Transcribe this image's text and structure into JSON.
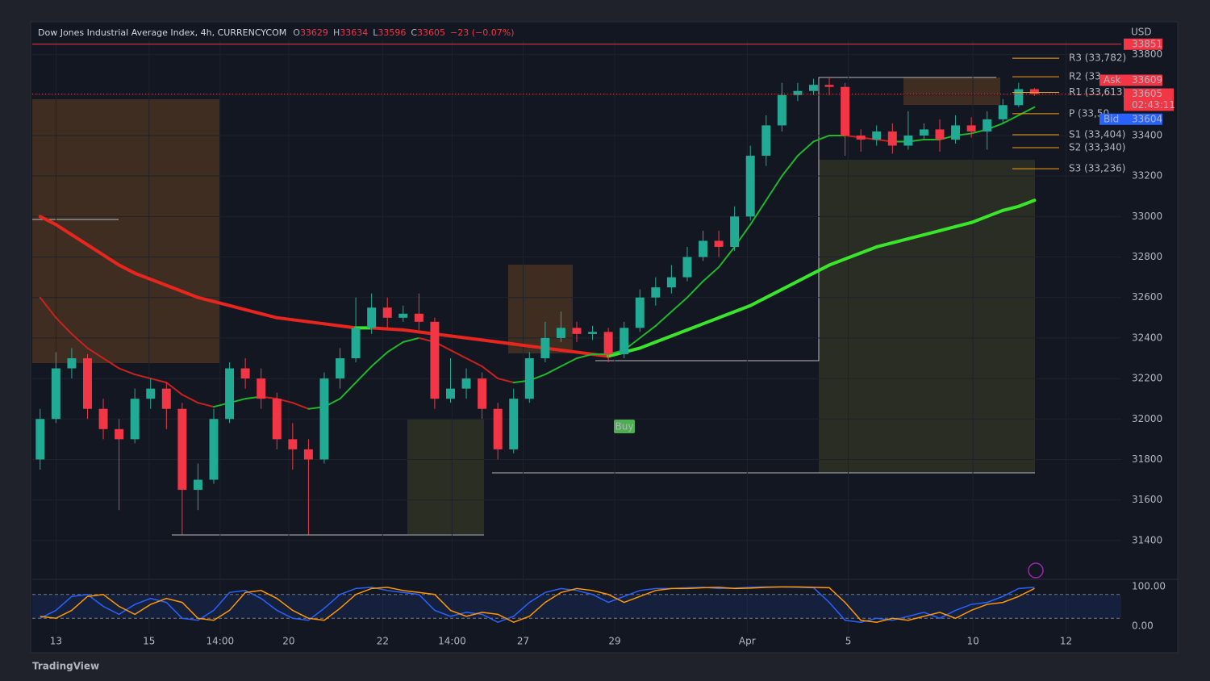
{
  "chart_data": {
    "type": "candlestick",
    "title": "Dow Jones Industrial Average Index, 4h, CURRENCYCOM",
    "ohlc_legend": [
      {
        "label": "O",
        "value": 33629
      },
      {
        "label": "H",
        "value": 33634
      },
      {
        "label": "L",
        "value": 33596
      },
      {
        "label": "C",
        "value": 33605
      }
    ],
    "change_label": "−23 (−0.07%)",
    "currency": "USD",
    "up_color": "#22ab94",
    "down_color": "#f23645",
    "open": [
      31800,
      32000,
      32250,
      32300,
      32050,
      31950,
      31900,
      32100,
      32150,
      32050,
      31650,
      31700,
      32000,
      32250,
      32200,
      32100,
      31900,
      31850,
      31800,
      32200,
      32300,
      32450,
      32550,
      32500,
      32520,
      32480,
      32100,
      32150,
      32200,
      32050,
      31850,
      32100,
      32300,
      32400,
      32450,
      32420,
      32430,
      32320,
      32450,
      32600,
      32650,
      32700,
      32800,
      32880,
      32850,
      33000,
      33300,
      33450,
      33600,
      33620,
      33650,
      33640,
      33400,
      33380,
      33420,
      33350,
      33400,
      33430,
      33380,
      33450,
      33420,
      33480,
      33550,
      33629
    ],
    "high": [
      32050,
      32330,
      32350,
      32320,
      32100,
      32000,
      32150,
      32200,
      32180,
      32080,
      31780,
      32050,
      32280,
      32300,
      32250,
      32130,
      31980,
      31900,
      32230,
      32350,
      32600,
      32620,
      32600,
      32560,
      32620,
      32500,
      32300,
      32250,
      32230,
      32080,
      32150,
      32330,
      32480,
      32530,
      32480,
      32460,
      32450,
      32480,
      32640,
      32700,
      32760,
      32850,
      32930,
      32930,
      33050,
      33350,
      33500,
      33660,
      33660,
      33680,
      33690,
      33660,
      33430,
      33450,
      33460,
      33520,
      33460,
      33480,
      33500,
      33490,
      33520,
      33580,
      33660,
      33634
    ],
    "low": [
      31750,
      31980,
      32200,
      32000,
      31900,
      31550,
      31880,
      32050,
      31950,
      31430,
      31550,
      31680,
      31980,
      32150,
      32050,
      31850,
      31750,
      31430,
      31780,
      32150,
      32280,
      32420,
      32450,
      32480,
      32440,
      32050,
      32080,
      32100,
      32000,
      31800,
      31830,
      32080,
      32280,
      32380,
      32380,
      32390,
      32280,
      32300,
      32430,
      32560,
      32620,
      32680,
      32780,
      32800,
      32830,
      32980,
      33250,
      33420,
      33570,
      33600,
      33600,
      33300,
      33320,
      33350,
      33310,
      33330,
      33380,
      33320,
      33360,
      33390,
      33330,
      33460,
      33540,
      33596
    ],
    "close": [
      32000,
      32250,
      32300,
      32050,
      31950,
      31900,
      32100,
      32150,
      32050,
      31650,
      31700,
      32000,
      32250,
      32200,
      32100,
      31900,
      31850,
      31800,
      32200,
      32300,
      32450,
      32550,
      32500,
      32520,
      32480,
      32100,
      32150,
      32200,
      32050,
      31850,
      32100,
      32300,
      32400,
      32450,
      32420,
      32430,
      32320,
      32450,
      32600,
      32650,
      32700,
      32800,
      32880,
      32850,
      33000,
      33300,
      33450,
      33600,
      33620,
      33650,
      33640,
      33400,
      33380,
      33420,
      33350,
      33400,
      33430,
      33380,
      33450,
      33420,
      33480,
      33550,
      33629,
      33605
    ],
    "xlim": [
      -0.5,
      68.5
    ],
    "xticks": [
      {
        "value": 1,
        "label": "13"
      },
      {
        "value": 6.9,
        "label": "15"
      },
      {
        "value": 11.4,
        "label": "14:00"
      },
      {
        "value": 15.75,
        "label": "20"
      },
      {
        "value": 21.7,
        "label": "22"
      },
      {
        "value": 26.1,
        "label": "14:00"
      },
      {
        "value": 30.6,
        "label": "27"
      },
      {
        "value": 36.4,
        "label": "29"
      },
      {
        "value": 44.8,
        "label": "Apr"
      },
      {
        "value": 51.2,
        "label": "5"
      },
      {
        "value": 59.1,
        "label": "10"
      },
      {
        "value": 65,
        "label": "12"
      }
    ],
    "ylim": [
      31220,
      33870
    ],
    "yticks": [
      31400,
      31600,
      31800,
      32000,
      32200,
      32400,
      32600,
      32800,
      33000,
      33200,
      33400,
      33600,
      33800
    ],
    "grid": true,
    "moving_averages": [
      {
        "width": 4,
        "up_color": "#39e62b",
        "down_color": "#e8261e",
        "values": [
          33000,
          32960,
          32910,
          32860,
          32810,
          32760,
          32720,
          32690,
          32660,
          32630,
          32600,
          32580,
          32560,
          32540,
          32520,
          32500,
          32490,
          32480,
          32470,
          32460,
          32450,
          32450,
          32445,
          32440,
          32430,
          32420,
          32410,
          32400,
          32390,
          32380,
          32370,
          32360,
          32350,
          32340,
          32330,
          32320,
          32310,
          32330,
          32350,
          32380,
          32410,
          32440,
          32470,
          32500,
          32530,
          32560,
          32600,
          32640,
          32680,
          32720,
          32760,
          32790,
          32820,
          32850,
          32870,
          32890,
          32910,
          32930,
          32950,
          32970,
          33000,
          33030,
          33050,
          33080
        ]
      },
      {
        "width": 2,
        "up_color": "#1fb82a",
        "down_color": "#c9221d",
        "values": [
          32600,
          32500,
          32420,
          32350,
          32300,
          32250,
          32220,
          32200,
          32180,
          32120,
          32080,
          32060,
          32080,
          32100,
          32110,
          32100,
          32080,
          32050,
          32060,
          32100,
          32180,
          32260,
          32330,
          32380,
          32400,
          32380,
          32340,
          32300,
          32260,
          32200,
          32180,
          32190,
          32220,
          32260,
          32300,
          32320,
          32320,
          32340,
          32400,
          32460,
          32530,
          32600,
          32680,
          32750,
          32850,
          32960,
          33080,
          33200,
          33300,
          33370,
          33400,
          33400,
          33390,
          33380,
          33370,
          33370,
          33380,
          33380,
          33400,
          33410,
          33430,
          33460,
          33500,
          33540
        ]
      }
    ],
    "pivot_color": "#f7a21b",
    "pivots": [
      {
        "label": "R3 (33,782)",
        "value": 33782
      },
      {
        "label": "R2 (33,",
        "value": 33690
      },
      {
        "label": "R1 (33,613)",
        "value": 33613
      },
      {
        "label": "P (33,50",
        "value": 33508
      },
      {
        "label": "S1 (33,404)",
        "value": 33404
      },
      {
        "label": "S2 (33,340)",
        "value": 33340
      },
      {
        "label": "S3 (33,236)",
        "value": 33236
      }
    ],
    "price_tags": {
      "high": 33851,
      "ask": {
        "label": "Ask",
        "value": 33609
      },
      "last": 33605,
      "countdown": "02:43:11",
      "bid": {
        "label": "Bid",
        "value": 33604
      }
    },
    "annotations": [
      "Buy"
    ],
    "oscillator": {
      "ylim": [
        -18,
        114
      ],
      "yticks": [
        {
          "value": 100,
          "label": "100.00"
        },
        {
          "value": 0,
          "label": "0.00"
        }
      ],
      "band": [
        20,
        80
      ],
      "series": [
        {
          "color": "#2962ff",
          "values": [
            20,
            40,
            75,
            80,
            50,
            30,
            55,
            70,
            60,
            20,
            15,
            40,
            85,
            90,
            70,
            40,
            20,
            15,
            45,
            80,
            95,
            98,
            90,
            85,
            80,
            40,
            25,
            35,
            30,
            10,
            25,
            60,
            85,
            95,
            90,
            80,
            60,
            75,
            90,
            95,
            95,
            97,
            98,
            95,
            96,
            98,
            99,
            99,
            98,
            97,
            60,
            15,
            10,
            20,
            15,
            25,
            35,
            20,
            40,
            55,
            60,
            75,
            95,
            98
          ]
        },
        {
          "color": "#ff9800",
          "values": [
            25,
            20,
            40,
            75,
            80,
            50,
            30,
            55,
            70,
            60,
            20,
            15,
            40,
            85,
            90,
            70,
            40,
            20,
            15,
            45,
            80,
            95,
            98,
            90,
            85,
            80,
            40,
            25,
            35,
            30,
            10,
            25,
            60,
            85,
            95,
            90,
            80,
            60,
            75,
            90,
            95,
            95,
            97,
            98,
            95,
            96,
            98,
            99,
            99,
            98,
            97,
            60,
            15,
            10,
            20,
            15,
            25,
            35,
            20,
            40,
            55,
            60,
            75,
            95
          ]
        }
      ]
    },
    "brand": "TradingView"
  }
}
